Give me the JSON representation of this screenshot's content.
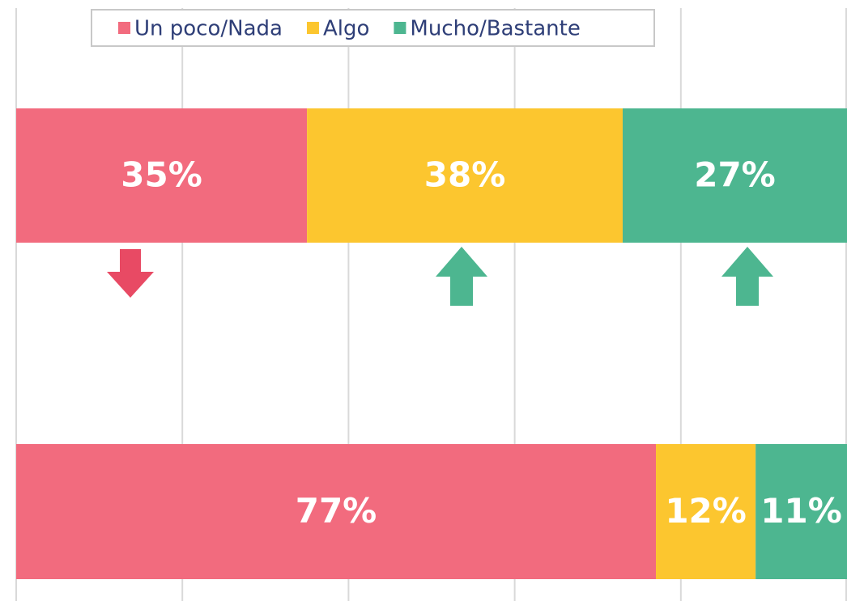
{
  "chart_data": {
    "type": "stacked_barh",
    "categories": [
      null,
      null
    ],
    "series": [
      {
        "name": "Un poco/Nada",
        "color": "#f26b7e",
        "values": [
          35,
          77
        ],
        "value_labels": [
          "35%",
          "77%"
        ]
      },
      {
        "name": "Algo",
        "color": "#fcc62f",
        "values": [
          38,
          12
        ],
        "value_labels": [
          "38%",
          "12%"
        ]
      },
      {
        "name": "Mucho/Bastante",
        "color": "#4db690",
        "values": [
          27,
          11
        ],
        "value_labels": [
          "27%",
          "11%"
        ]
      }
    ],
    "xlim": [
      0,
      100
    ],
    "xticks": [
      0,
      20,
      40,
      60,
      80,
      100
    ],
    "grid": true,
    "legend": "top"
  }
}
